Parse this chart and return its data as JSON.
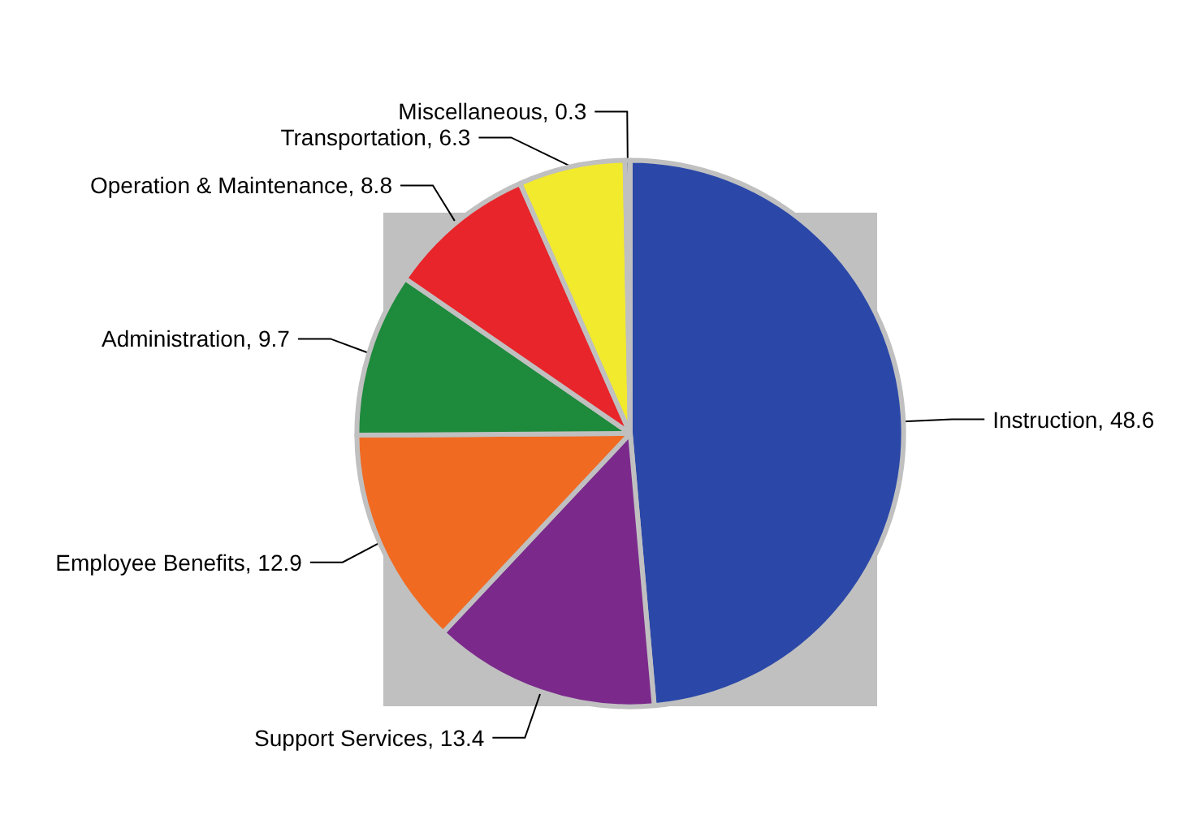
{
  "chart_data": {
    "type": "pie",
    "categories": [
      "Instruction",
      "Support Services",
      "Employee Benefits",
      "Administration",
      "Operation & Maintenance",
      "Transportation",
      "Miscellaneous"
    ],
    "values": [
      48.6,
      13.4,
      12.9,
      9.7,
      8.8,
      6.3,
      0.3
    ],
    "colors": [
      "#2b48a8",
      "#7b2a8c",
      "#f06a22",
      "#1e8a3c",
      "#e8252a",
      "#f2ea2c",
      "#1c3c8c"
    ],
    "value_labels": [
      ", 48.6",
      ", 13.4",
      ", 12.9",
      ", 9.7",
      ", 8.8",
      ", 6.3",
      ", 0.3"
    ],
    "legend": false
  }
}
